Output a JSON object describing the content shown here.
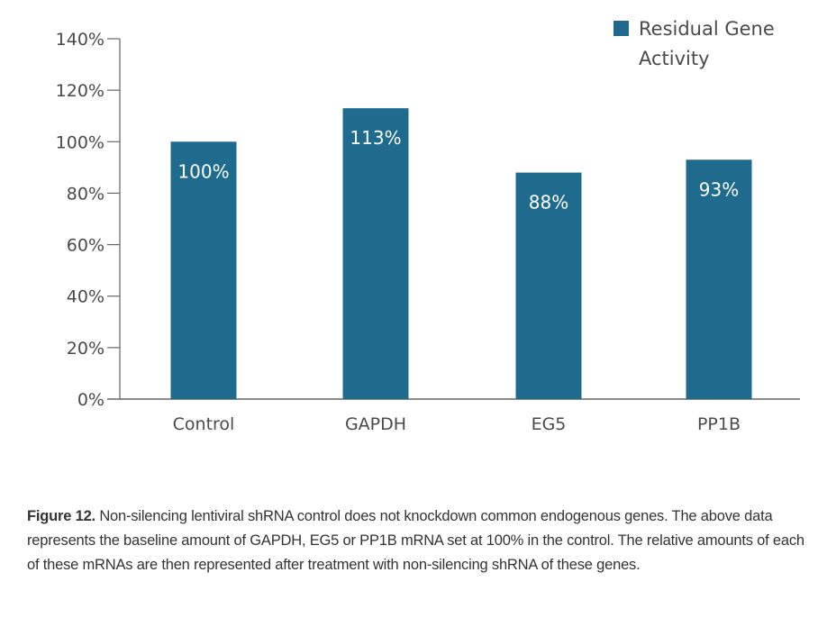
{
  "chart_data": {
    "type": "bar",
    "title": "",
    "xlabel": "",
    "ylabel": "",
    "categories": [
      "Control",
      "GAPDH",
      "EG5",
      "PP1B"
    ],
    "series": [
      {
        "name": "Residual Gene Activity",
        "values": [
          100,
          113,
          88,
          93
        ],
        "data_labels": [
          "100%",
          "113%",
          "88%",
          "93%"
        ],
        "color": "#1f6b8e"
      }
    ],
    "ylim": [
      0,
      140
    ],
    "yticks": [
      0,
      20,
      40,
      60,
      80,
      100,
      120,
      140
    ],
    "ytick_labels": [
      "0%",
      "20%",
      "40%",
      "60%",
      "80%",
      "100%",
      "120%",
      "140%"
    ],
    "grid": false,
    "legend": {
      "position": "top-right",
      "entries": [
        "Residual Gene Activity"
      ]
    }
  },
  "legend": {
    "line1": "Residual Gene",
    "line2": "Activity"
  },
  "caption": {
    "label": "Figure 12.",
    "text": " Non-silencing lentiviral shRNA control does not knockdown common endogenous genes. The above data represents the baseline amount of GAPDH, EG5 or PP1B mRNA set at 100% in the control. The relative amounts of each of these mRNAs are then represented after treatment with non-silencing shRNA of these genes."
  },
  "colors": {
    "bar": "#1f6b8e",
    "axis": "#808080",
    "text": "#4a4a4a"
  }
}
